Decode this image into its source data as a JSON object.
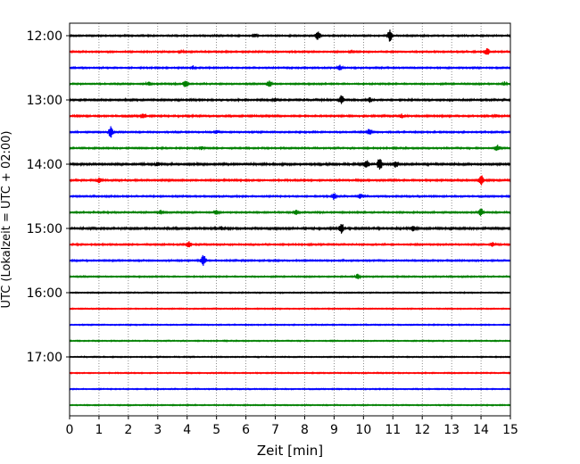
{
  "chart_data": {
    "type": "line",
    "title": "",
    "xlabel": "Zeit  [min]",
    "ylabel": "UTC (Lokalzeit = UTC + 02:00)",
    "xlim": [
      0,
      15
    ],
    "xticks": [
      0,
      1,
      2,
      3,
      4,
      5,
      6,
      7,
      8,
      9,
      10,
      11,
      12,
      13,
      14,
      15
    ],
    "xtick_labels": [
      "0",
      "1",
      "2",
      "3",
      "4",
      "5",
      "6",
      "7",
      "8",
      "9",
      "10",
      "11",
      "12",
      "13",
      "14",
      "15"
    ],
    "row_interval_minutes": 15,
    "row_start": "12:00",
    "yticks": [
      "12:00",
      "13:00",
      "14:00",
      "15:00",
      "16:00",
      "17:00"
    ],
    "grid": "vertical-dotted",
    "colors": [
      "#000000",
      "#ff0000",
      "#0000ff",
      "#008000"
    ],
    "traces": [
      {
        "start": "12:00",
        "noise": 0.7,
        "events": [
          [
            6.3,
            2
          ],
          [
            8.45,
            6
          ],
          [
            10.9,
            7
          ]
        ]
      },
      {
        "start": "12:15",
        "noise": 0.7,
        "events": [
          [
            3.8,
            2
          ],
          [
            9.6,
            2
          ],
          [
            14.2,
            5
          ]
        ]
      },
      {
        "start": "12:30",
        "noise": 0.7,
        "events": [
          [
            4.2,
            2
          ],
          [
            9.2,
            3
          ]
        ]
      },
      {
        "start": "12:45",
        "noise": 0.7,
        "events": [
          [
            2.7,
            2
          ],
          [
            3.95,
            5
          ],
          [
            6.8,
            4
          ],
          [
            14.8,
            2
          ]
        ]
      },
      {
        "start": "13:00",
        "noise": 0.8,
        "events": [
          [
            7.0,
            2
          ],
          [
            9.25,
            6
          ],
          [
            10.2,
            3
          ]
        ]
      },
      {
        "start": "13:15",
        "noise": 0.8,
        "events": [
          [
            2.5,
            3
          ],
          [
            11.3,
            2
          ],
          [
            14.5,
            2
          ]
        ]
      },
      {
        "start": "13:30",
        "noise": 0.7,
        "events": [
          [
            1.4,
            7
          ],
          [
            5.0,
            2
          ],
          [
            10.2,
            4
          ]
        ]
      },
      {
        "start": "13:45",
        "noise": 0.7,
        "events": [
          [
            4.5,
            2
          ],
          [
            14.55,
            4
          ]
        ]
      },
      {
        "start": "14:00",
        "noise": 0.9,
        "events": [
          [
            3.0,
            2
          ],
          [
            10.1,
            5
          ],
          [
            10.55,
            8
          ],
          [
            11.1,
            4
          ]
        ]
      },
      {
        "start": "14:15",
        "noise": 0.8,
        "events": [
          [
            1.0,
            3
          ],
          [
            14.0,
            6
          ]
        ]
      },
      {
        "start": "14:30",
        "noise": 0.7,
        "events": [
          [
            9.0,
            4
          ],
          [
            9.9,
            3
          ]
        ]
      },
      {
        "start": "14:45",
        "noise": 0.7,
        "events": [
          [
            3.1,
            3
          ],
          [
            5.0,
            3
          ],
          [
            7.7,
            3
          ],
          [
            14.0,
            5
          ]
        ]
      },
      {
        "start": "15:00",
        "noise": 0.9,
        "events": [
          [
            5.2,
            2
          ],
          [
            9.25,
            6
          ],
          [
            11.7,
            3
          ]
        ]
      },
      {
        "start": "15:15",
        "noise": 0.7,
        "events": [
          [
            4.05,
            4
          ],
          [
            14.4,
            3
          ]
        ]
      },
      {
        "start": "15:30",
        "noise": 0.7,
        "events": [
          [
            4.55,
            7
          ]
        ]
      },
      {
        "start": "15:45",
        "noise": 0.6,
        "events": [
          [
            9.8,
            3
          ]
        ]
      },
      {
        "start": "16:00",
        "noise": 0.5,
        "events": []
      },
      {
        "start": "16:15",
        "noise": 0.5,
        "events": []
      },
      {
        "start": "16:30",
        "noise": 0.5,
        "events": []
      },
      {
        "start": "16:45",
        "noise": 0.5,
        "events": []
      },
      {
        "start": "17:00",
        "noise": 0.5,
        "events": []
      },
      {
        "start": "17:15",
        "noise": 0.5,
        "events": []
      },
      {
        "start": "17:30",
        "noise": 0.5,
        "events": []
      },
      {
        "start": "17:45",
        "noise": 0.5,
        "events": []
      }
    ]
  }
}
